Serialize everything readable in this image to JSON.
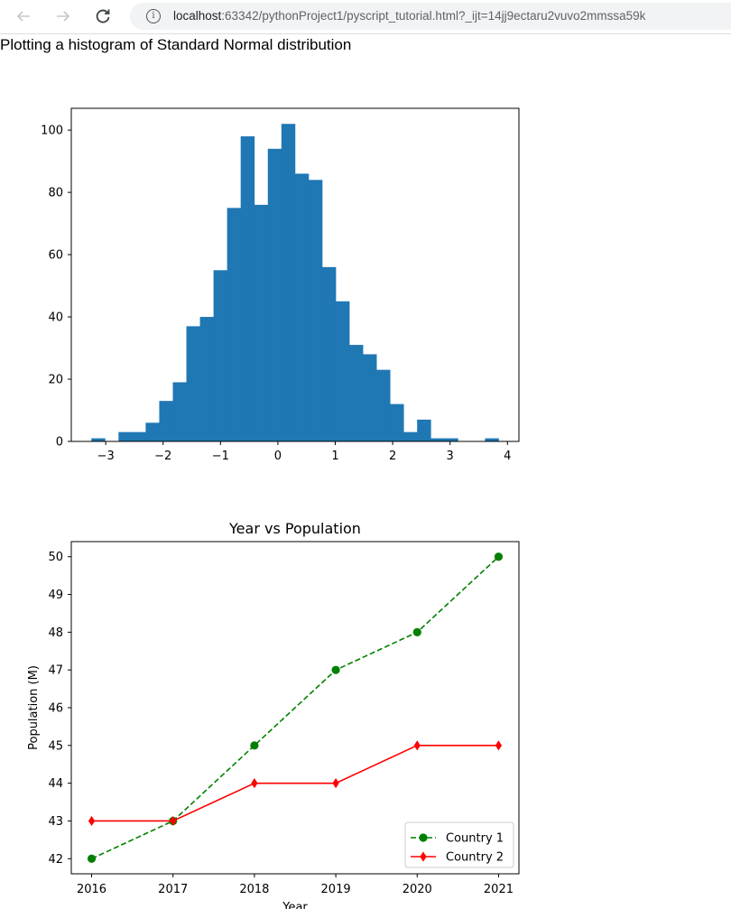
{
  "browser": {
    "url_host": "localhost",
    "url_rest": ":63342/pythonProject1/pyscript_tutorial.html?_ijt=14jj9ectaru2vuvo2mmssa59k",
    "back_icon": "arrow-left-icon",
    "forward_icon": "arrow-right-icon",
    "reload_icon": "reload-icon",
    "info_icon": "info-icon"
  },
  "page": {
    "heading": "Plotting a histogram of Standard Normal distribution"
  },
  "colors": {
    "histogram": "#1f77b4",
    "country1": "#008000",
    "country2": "#ff0000"
  },
  "chart_data": [
    {
      "type": "bar",
      "subtype": "histogram",
      "title": "",
      "xlabel": "",
      "ylabel": "",
      "bin_start": -3.25,
      "bin_width": 0.2365,
      "values": [
        1,
        0,
        3,
        3,
        6,
        13,
        19,
        37,
        40,
        55,
        75,
        98,
        76,
        94,
        102,
        86,
        84,
        56,
        45,
        31,
        28,
        23,
        12,
        3,
        7,
        1,
        1,
        0,
        0,
        1
      ],
      "xlim": [
        -3.6,
        4.2
      ],
      "ylim": [
        0,
        107
      ],
      "xticks": [
        -3,
        -2,
        -1,
        0,
        1,
        2,
        3,
        4
      ],
      "xtick_labels": [
        "−3",
        "−2",
        "−1",
        "0",
        "1",
        "2",
        "3",
        "4"
      ],
      "yticks": [
        0,
        20,
        40,
        60,
        80,
        100
      ],
      "grid": false
    },
    {
      "type": "line",
      "title": "Year vs Population",
      "xlabel": "Year",
      "ylabel": "Population (M)",
      "x": [
        2016,
        2017,
        2018,
        2019,
        2020,
        2021
      ],
      "series": [
        {
          "name": "Country 1",
          "values": [
            42,
            43,
            45,
            47,
            48,
            50
          ],
          "style": "dashed",
          "marker": "circle"
        },
        {
          "name": "Country 2",
          "values": [
            43,
            43,
            44,
            44,
            45,
            45
          ],
          "style": "solid",
          "marker": "diamond"
        }
      ],
      "xlim": [
        2015.75,
        2021.25
      ],
      "ylim": [
        41.6,
        50.4
      ],
      "yticks": [
        42,
        43,
        44,
        45,
        46,
        47,
        48,
        49,
        50
      ],
      "legend": "lower-right",
      "grid": false
    }
  ]
}
